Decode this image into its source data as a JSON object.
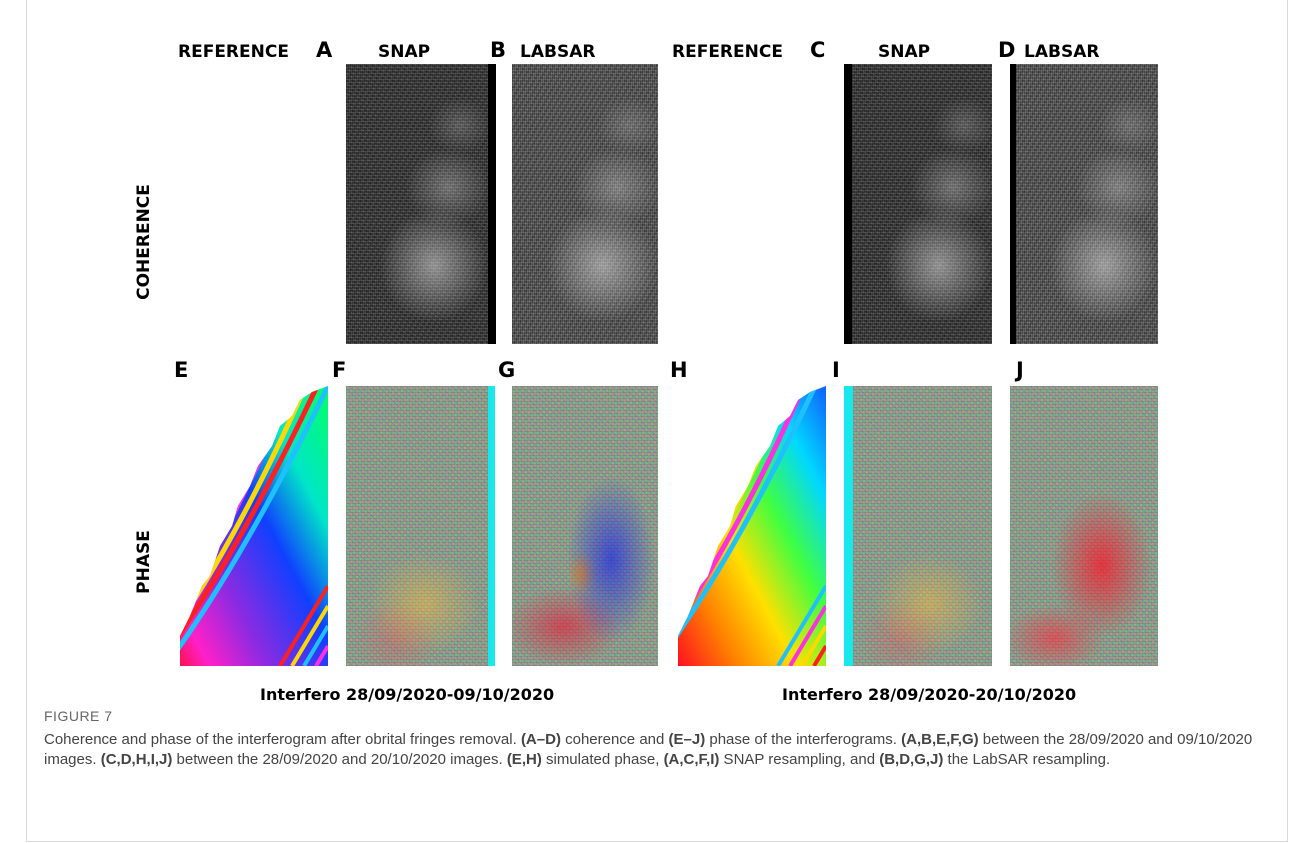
{
  "figure": {
    "column_headers": {
      "reference_left": "REFERENCE",
      "snap_left": "SNAP",
      "labsar_left": "LABSAR",
      "reference_right": "REFERENCE",
      "snap_right": "SNAP",
      "labsar_right": "LABSAR"
    },
    "row_headers": {
      "coherence": "COHERENCE",
      "phase": "PHASE"
    },
    "panel_letters": {
      "A": "A",
      "B": "B",
      "C": "C",
      "D": "D",
      "E": "E",
      "F": "F",
      "G": "G",
      "H": "H",
      "I": "I",
      "J": "J"
    },
    "pair_labels": {
      "left": "Interfero 28/09/2020-09/10/2020",
      "right": "Interfero 28/09/2020-20/10/2020"
    }
  },
  "caption": {
    "figure_number": "FIGURE 7",
    "segments": [
      {
        "t": "Coherence and phase of the interferogram after obrital fringes removal. ",
        "b": false
      },
      {
        "t": "(A–D)",
        "b": true
      },
      {
        "t": " coherence and ",
        "b": false
      },
      {
        "t": "(E–J)",
        "b": true
      },
      {
        "t": " phase of the interferograms. ",
        "b": false
      },
      {
        "t": "(A,B,E,F,G)",
        "b": true
      },
      {
        "t": " between the 28/09/2020 and 09/10/2020 images. ",
        "b": false
      },
      {
        "t": "(C,D,H,I,J)",
        "b": true
      },
      {
        "t": " between the 28/09/2020 and 20/10/2020 images. ",
        "b": false
      },
      {
        "t": "(E,H)",
        "b": true
      },
      {
        "t": " simulated phase, ",
        "b": false
      },
      {
        "t": "(A,C,F,I)",
        "b": true
      },
      {
        "t": " SNAP resampling, and ",
        "b": false
      },
      {
        "t": "(B,D,G,J)",
        "b": true
      },
      {
        "t": " the LabSAR resampling.",
        "b": false
      }
    ]
  },
  "colors": {
    "cyan_strip": "#18e8ec",
    "caption_text": "#444444",
    "figure_number": "#666666"
  }
}
